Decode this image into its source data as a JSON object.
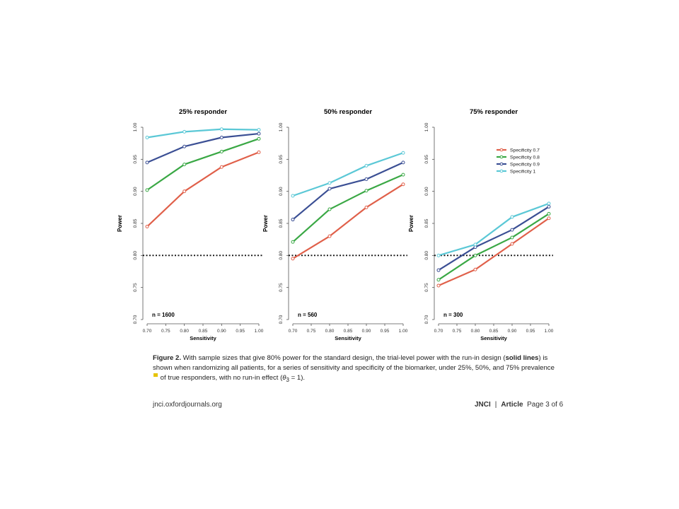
{
  "chart_data": [
    {
      "type": "line",
      "title": "25% responder",
      "xlabel": "Sensitivity",
      "ylabel": "Power",
      "x": [
        0.7,
        0.8,
        0.9,
        1.0
      ],
      "xticks": [
        "0.70",
        "0.75",
        "0.80",
        "0.85",
        "0.90",
        "0.95",
        "1.00"
      ],
      "yticks": [
        "0.70",
        "0.75",
        "0.80",
        "0.85",
        "0.90",
        "0.95",
        "1.00"
      ],
      "xlim": [
        0.7,
        1.0
      ],
      "ylim": [
        0.7,
        1.0
      ],
      "reference_line": 0.8,
      "annotation": "n = 1600",
      "series": [
        {
          "name": "Specificity 0.7",
          "color": "#e0604a",
          "values": [
            0.845,
            0.9,
            0.938,
            0.961
          ]
        },
        {
          "name": "Specificity 0.8",
          "color": "#3aa845",
          "values": [
            0.902,
            0.942,
            0.962,
            0.982
          ]
        },
        {
          "name": "Specificity 0.9",
          "color": "#3b4f94",
          "values": [
            0.945,
            0.97,
            0.984,
            0.99
          ]
        },
        {
          "name": "Specificity 1",
          "color": "#5bc8d6",
          "values": [
            0.984,
            0.993,
            0.997,
            0.996
          ]
        }
      ]
    },
    {
      "type": "line",
      "title": "50% responder",
      "xlabel": "Sensitivity",
      "ylabel": "Power",
      "x": [
        0.7,
        0.8,
        0.9,
        1.0
      ],
      "xticks": [
        "0.70",
        "0.75",
        "0.80",
        "0.85",
        "0.90",
        "0.95",
        "1.00"
      ],
      "yticks": [
        "0.70",
        "0.75",
        "0.80",
        "0.85",
        "0.90",
        "0.95",
        "1.00"
      ],
      "xlim": [
        0.7,
        1.0
      ],
      "ylim": [
        0.7,
        1.0
      ],
      "reference_line": 0.8,
      "annotation": "n = 560",
      "series": [
        {
          "name": "Specificity 0.7",
          "color": "#e0604a",
          "values": [
            0.795,
            0.83,
            0.875,
            0.911
          ]
        },
        {
          "name": "Specificity 0.8",
          "color": "#3aa845",
          "values": [
            0.821,
            0.872,
            0.901,
            0.926
          ]
        },
        {
          "name": "Specificity 0.9",
          "color": "#3b4f94",
          "values": [
            0.856,
            0.904,
            0.919,
            0.945
          ]
        },
        {
          "name": "Specificity 1",
          "color": "#5bc8d6",
          "values": [
            0.893,
            0.913,
            0.94,
            0.96
          ]
        }
      ]
    },
    {
      "type": "line",
      "title": "75% responder",
      "xlabel": "Sensitivity",
      "ylabel": "Power",
      "x": [
        0.7,
        0.8,
        0.9,
        1.0
      ],
      "xticks": [
        "0.70",
        "0.75",
        "0.80",
        "0.85",
        "0.90",
        "0.95",
        "1.00"
      ],
      "yticks": [
        "0.70",
        "0.75",
        "0.80",
        "0.85",
        "0.90",
        "0.95",
        "1.00"
      ],
      "xlim": [
        0.7,
        1.0
      ],
      "ylim": [
        0.7,
        1.0
      ],
      "reference_line": 0.8,
      "annotation": "n = 300",
      "legend_position": "top-right",
      "series": [
        {
          "name": "Specificity 0.7",
          "color": "#e0604a",
          "values": [
            0.753,
            0.778,
            0.818,
            0.858
          ]
        },
        {
          "name": "Specificity 0.8",
          "color": "#3aa845",
          "values": [
            0.762,
            0.8,
            0.828,
            0.865
          ]
        },
        {
          "name": "Specificity 0.9",
          "color": "#3b4f94",
          "values": [
            0.777,
            0.813,
            0.84,
            0.876
          ]
        },
        {
          "name": "Specificity 1",
          "color": "#5bc8d6",
          "values": [
            0.8,
            0.817,
            0.86,
            0.881
          ]
        }
      ]
    }
  ],
  "caption": {
    "label": "Figure 2.",
    "text_a": " With sample sizes that give 80% power for the standard design, the trial-level power with the run-in design (",
    "bold": "solid lines",
    "text_b": ") is shown when randomizing all patients, for a series of sensitivity and specificity of the biomarker, under 25%, 50%, and 75% prevalence",
    "text_c": " of true responders, with no run-in effect (",
    "theta": "θ",
    "theta_sub": "3",
    "text_d": " = 1)."
  },
  "footer": {
    "left": "jnci.oxfordjournals.org",
    "journal": "JNCI",
    "separator": "|",
    "article": "Article",
    "page": "Page 3 of 6"
  }
}
